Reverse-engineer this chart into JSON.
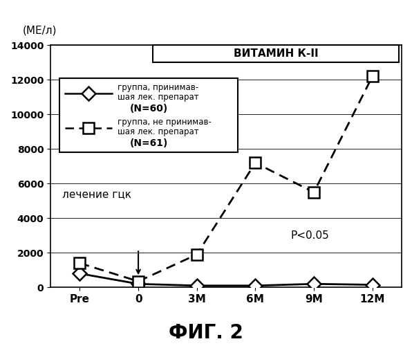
{
  "title_ylabel": "(МЕ/л)",
  "xlabel_ticks": [
    "Pre",
    "0",
    "3М",
    "6М",
    "9М",
    "12М"
  ],
  "x_positions": [
    0,
    1,
    2,
    3,
    4,
    5
  ],
  "ylim": [
    0,
    14000
  ],
  "yticks": [
    0,
    2000,
    4000,
    6000,
    8000,
    10000,
    12000,
    14000
  ],
  "series1_label_line1": "группа, принимав-",
  "series1_label_line2": "шая лек. препарат",
  "series1_label_line3": "(N=60)",
  "series1_values": [
    800,
    200,
    100,
    100,
    200,
    150
  ],
  "series1_color": "#000000",
  "series2_label_line1": "группа, не принимав-",
  "series2_label_line2": "шая лек. препарат",
  "series2_label_line3": "(N=61)",
  "series2_values": [
    1400,
    350,
    1900,
    7200,
    5500,
    12200
  ],
  "series2_color": "#000000",
  "annotation_vk": "ВИТАМИН К-II",
  "annotation_hgk": "лечение гцк",
  "annotation_p": "P<0.05",
  "fig_title": "ФИГ. 2",
  "background_color": "#ffffff"
}
